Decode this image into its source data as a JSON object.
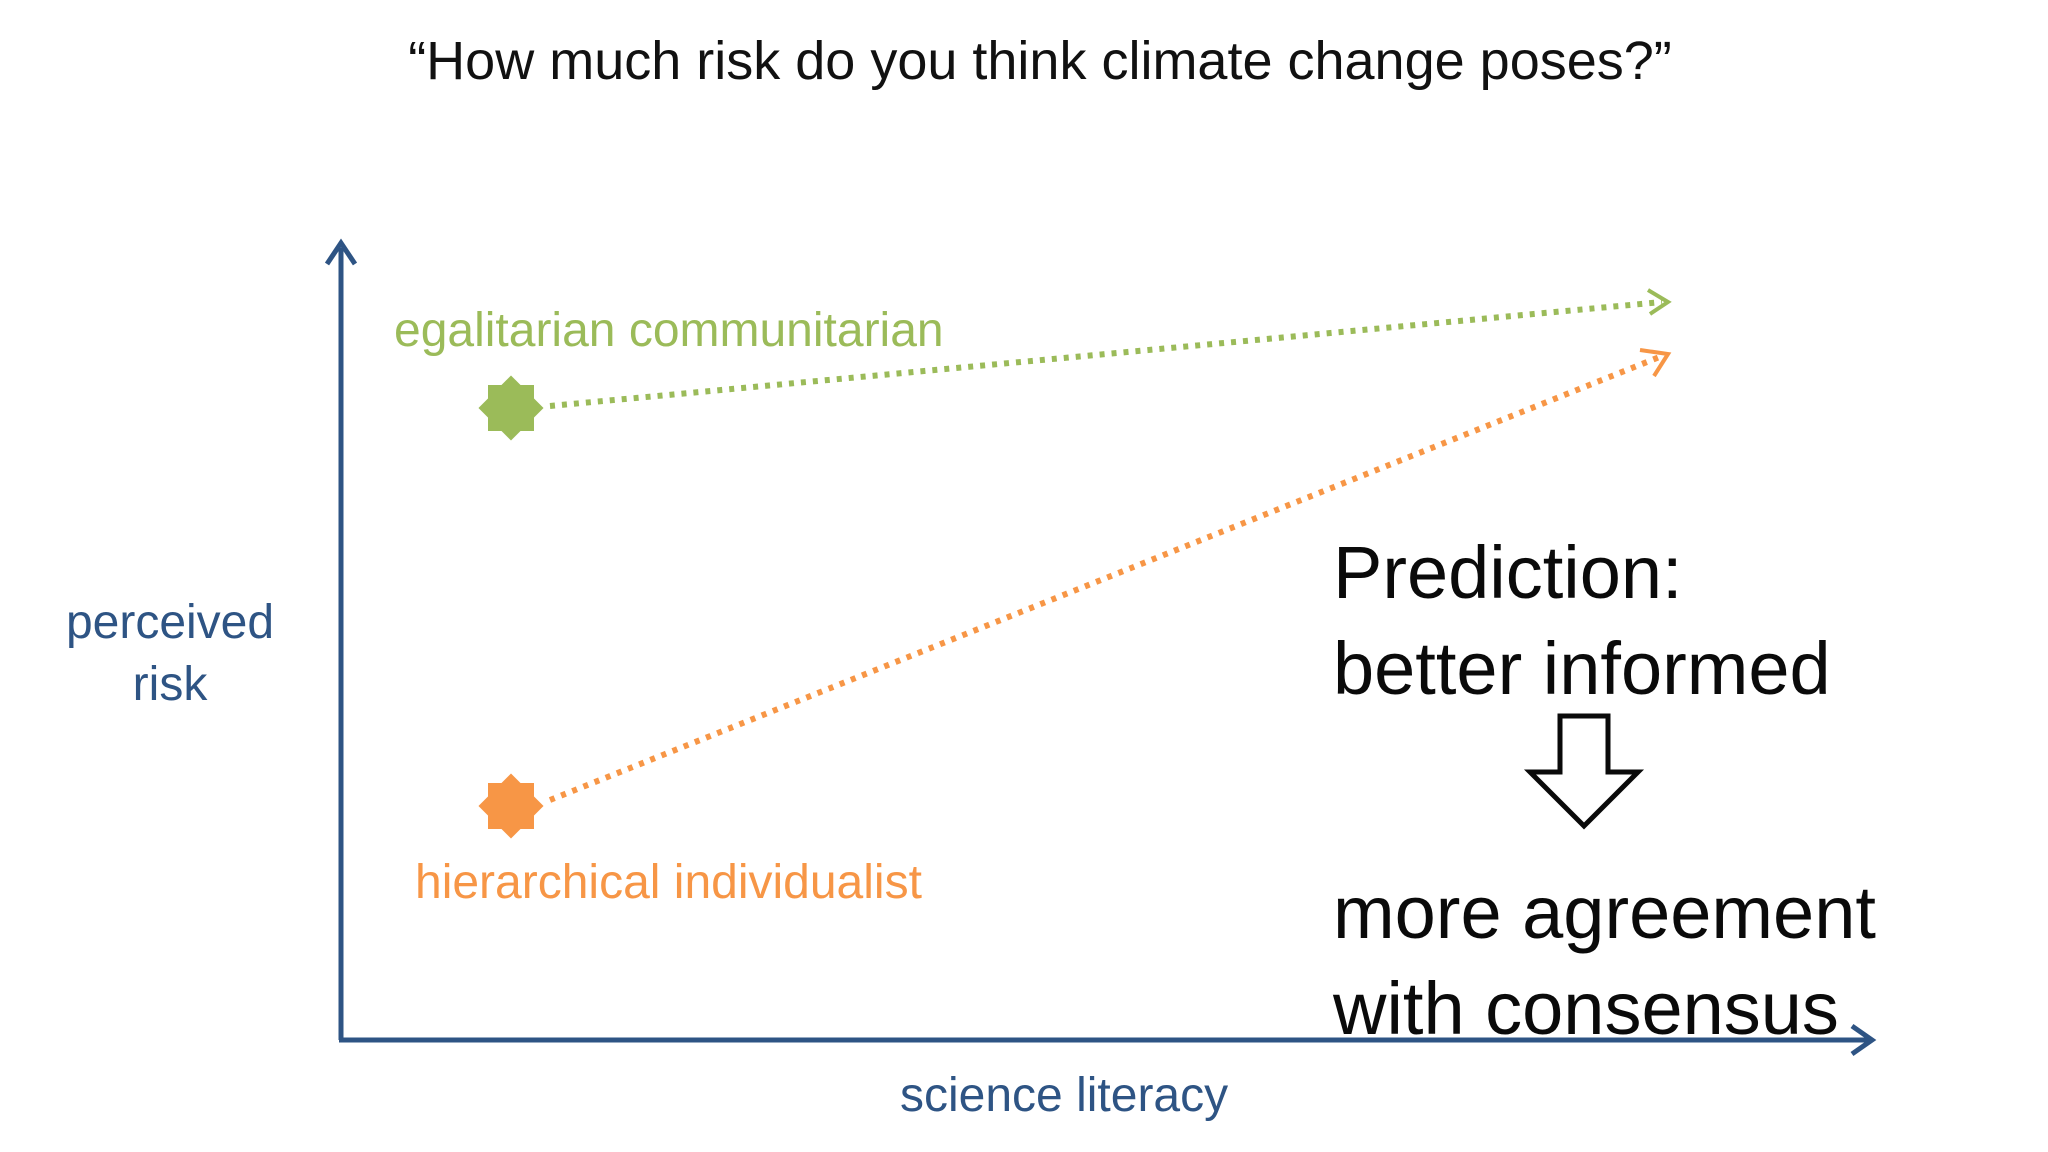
{
  "slide": {
    "title": "“How much risk do you think climate change poses?”"
  },
  "axes": {
    "y_label_line1": "perceived",
    "y_label_line2": "risk",
    "x_label": "science literacy",
    "color": "#2e5484"
  },
  "groups": [
    {
      "label": "egalitarian communitarian",
      "color": "#9bbb59"
    },
    {
      "label": "hierarchical individualist",
      "color": "#f79646"
    }
  ],
  "prediction": {
    "line1": "Prediction:",
    "line2": "better informed",
    "line3": "more agreement",
    "line4": "with consensus",
    "arrow_icon": "hollow-down-arrow-icon"
  }
}
